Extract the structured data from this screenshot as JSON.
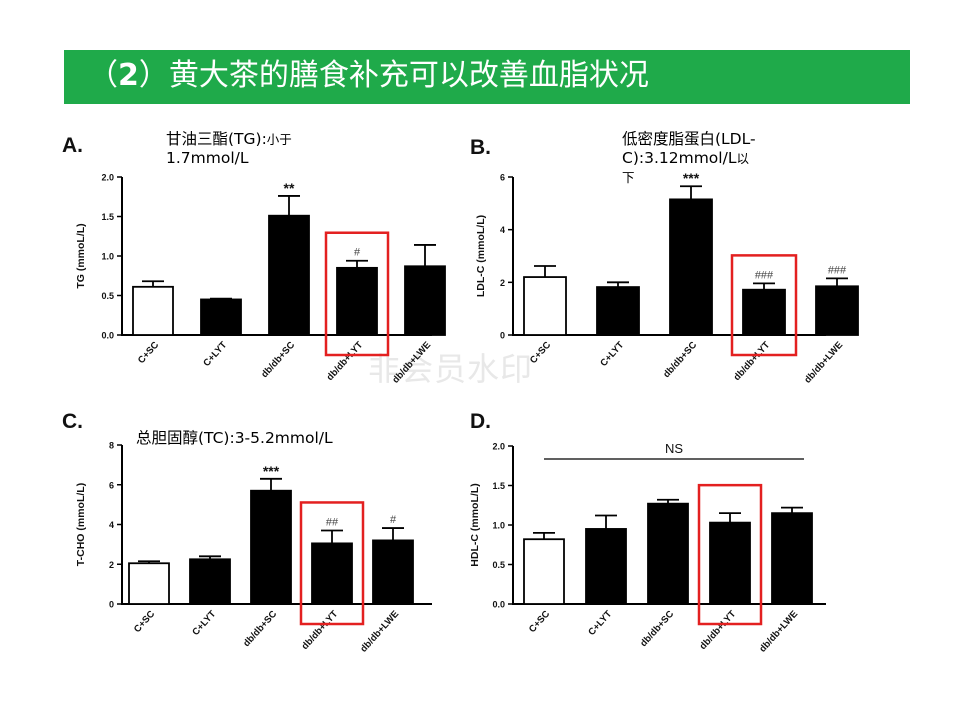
{
  "slide": {
    "title_paren_open": "（",
    "title_number": "2",
    "title_paren_close": "）",
    "title_text": "黄大茶的膳食补充可以改善血脂状况",
    "watermark": "非会员水印",
    "title_color": "#1faa4a"
  },
  "panels": {
    "A": {
      "letter": "A.",
      "note_main": "甘油三酯(TG):",
      "note_small": "小于",
      "note_line2": "1.7mmol/L"
    },
    "B": {
      "letter": "B.",
      "note_line1": "低密度脂蛋白(LDL-",
      "note_line2a": "C):3.12mmol/L",
      "note_line2b": "以",
      "note_line3": "下"
    },
    "C": {
      "letter": "C.",
      "note": "总胆固醇(TC):3-5.2mmol/L"
    },
    "D": {
      "letter": "D.",
      "note": ""
    }
  },
  "chart_data": [
    {
      "type": "bar",
      "panel": "A",
      "categories": [
        "C+SC",
        "C+LYT",
        "db/db+SC",
        "db/db+LYT",
        "db/db+LWE"
      ],
      "values": [
        0.61,
        0.45,
        1.51,
        0.85,
        0.87
      ],
      "errors": [
        0.07,
        0.01,
        0.25,
        0.09,
        0.27
      ],
      "fills": [
        "white",
        "black",
        "black",
        "black",
        "black"
      ],
      "annotations": [
        "",
        "",
        "**",
        "#",
        ""
      ],
      "ylabel": "TG (mmoL/L)",
      "ylim": [
        0,
        2.0
      ],
      "yticks": [
        "0.0",
        "0.5",
        "1.0",
        "1.5",
        "2.0"
      ],
      "highlight_index": 3,
      "highlight_color": "#e32020"
    },
    {
      "type": "bar",
      "panel": "B",
      "categories": [
        "C+SC",
        "C+LYT",
        "db/db+SC",
        "db/db+LYT",
        "db/db+LWE"
      ],
      "values": [
        2.2,
        1.82,
        5.15,
        1.72,
        1.85
      ],
      "errors": [
        0.42,
        0.18,
        0.5,
        0.24,
        0.3
      ],
      "fills": [
        "white",
        "black",
        "black",
        "black",
        "black"
      ],
      "annotations": [
        "",
        "",
        "***",
        "###",
        "###"
      ],
      "ylabel": "LDL-C (mmoL/L)",
      "ylim": [
        0,
        6
      ],
      "yticks": [
        "0",
        "2",
        "4",
        "6"
      ],
      "highlight_index": 3,
      "highlight_color": "#e32020"
    },
    {
      "type": "bar",
      "panel": "C",
      "categories": [
        "C+SC",
        "C+LYT",
        "db/db+SC",
        "db/db+LYT",
        "db/db+LWE"
      ],
      "values": [
        2.05,
        2.25,
        5.7,
        3.05,
        3.2
      ],
      "errors": [
        0.1,
        0.15,
        0.6,
        0.65,
        0.62
      ],
      "fills": [
        "white",
        "black",
        "black",
        "black",
        "black"
      ],
      "annotations": [
        "",
        "",
        "***",
        "##",
        "#"
      ],
      "ylabel": "T-CHO (mmoL/L)",
      "ylim": [
        0,
        8
      ],
      "yticks": [
        "0",
        "2",
        "4",
        "6",
        "8"
      ],
      "highlight_index": 3,
      "highlight_color": "#e32020"
    },
    {
      "type": "bar",
      "panel": "D",
      "categories": [
        "C+SC",
        "C+LYT",
        "db/db+SC",
        "db/db+LYT",
        "db/db+LWE"
      ],
      "values": [
        0.82,
        0.95,
        1.27,
        1.03,
        1.15
      ],
      "errors": [
        0.08,
        0.17,
        0.05,
        0.12,
        0.07
      ],
      "fills": [
        "white",
        "black",
        "black",
        "black",
        "black"
      ],
      "annotations": [
        "",
        "",
        "",
        "",
        ""
      ],
      "ylabel": "HDL-C (mmoL/L)",
      "ylim": [
        0,
        2.0
      ],
      "yticks": [
        "0.0",
        "0.5",
        "1.0",
        "1.5",
        "2.0"
      ],
      "bracket_label": "NS",
      "highlight_index": 3,
      "highlight_color": "#e32020"
    }
  ]
}
